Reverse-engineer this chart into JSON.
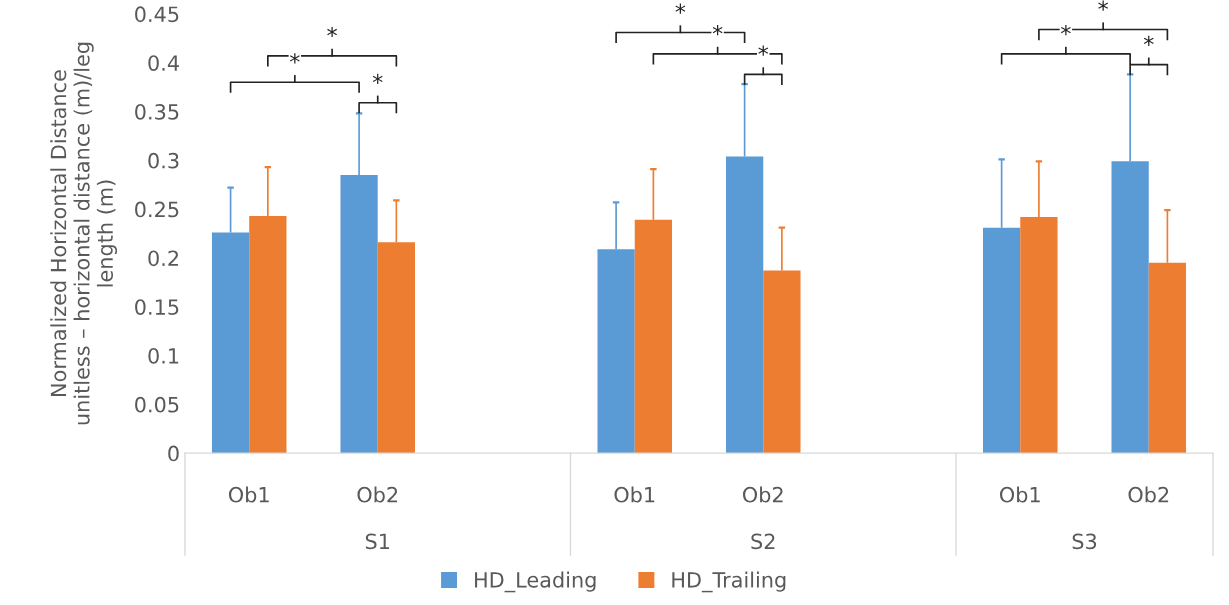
{
  "chart_data": {
    "type": "bar",
    "ylabel": "Normalized Horizontal Distance\nunitless – horizontal distance (m)/leg\nlength (m)",
    "categories": [
      "Ob1",
      "Ob2",
      null,
      "Ob1",
      "Ob2",
      null,
      "Ob1",
      "Ob2"
    ],
    "series": [
      {
        "name": "HD_Leading",
        "color": "#5b9bd5",
        "values": [
          0.226,
          0.285,
          null,
          0.209,
          0.304,
          null,
          0.231,
          0.299
        ],
        "errors": [
          [
            0.226,
            0.272
          ],
          [
            0.285,
            0.348
          ],
          null,
          [
            0.209,
            0.257
          ],
          [
            0.304,
            0.378
          ],
          null,
          [
            0.231,
            0.301
          ],
          [
            0.299,
            0.388
          ]
        ]
      },
      {
        "name": "HD_Trailing",
        "color": "#ed7d31",
        "values": [
          0.243,
          0.216,
          null,
          0.239,
          0.187,
          null,
          0.242,
          0.195
        ],
        "errors": [
          [
            0.243,
            0.293
          ],
          [
            0.216,
            0.259
          ],
          null,
          [
            0.239,
            0.291
          ],
          [
            0.187,
            0.231
          ],
          null,
          [
            0.242,
            0.299
          ],
          [
            0.195,
            0.249
          ]
        ]
      }
    ],
    "ylim": [
      0,
      0.45
    ],
    "yticks": [
      {
        "value": 0,
        "label": "0"
      },
      0.05,
      0.1,
      0.15,
      0.2,
      0.25,
      0.3,
      0.35,
      0.4,
      0.45
    ],
    "grid": false,
    "legend": "bottom",
    "annotations": [
      "S1",
      "S2",
      "S3",
      "*",
      "*",
      "*",
      "*",
      "*",
      "*",
      "*",
      "*",
      "*"
    ]
  }
}
